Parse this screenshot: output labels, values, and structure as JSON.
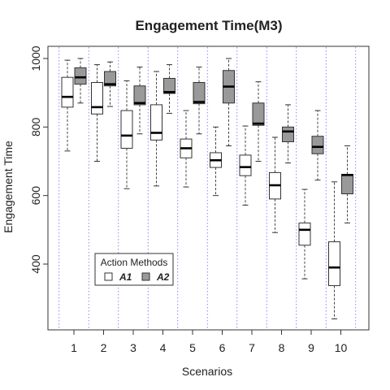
{
  "chart_data": {
    "type": "box",
    "title": "Engagement Time(M3)",
    "xlabel": "Scenarios",
    "ylabel": "Engagement Time",
    "categories": [
      "1",
      "2",
      "3",
      "4",
      "5",
      "6",
      "7",
      "8",
      "9",
      "10"
    ],
    "ylim": [
      200,
      1050
    ],
    "yticks": [
      400,
      600,
      800,
      1000
    ],
    "grid": "vertical dotted separators between scenarios",
    "legend": {
      "title": "Action Methods",
      "position": "bottom-left",
      "entries": [
        {
          "label": "A1",
          "color": "#ffffff"
        },
        {
          "label": "A2",
          "color": "#999999"
        }
      ]
    },
    "series": [
      {
        "name": "A1",
        "color": "#ffffff",
        "boxes": [
          {
            "min": 730,
            "q1": 858,
            "median": 888,
            "q3": 945,
            "max": 995
          },
          {
            "min": 700,
            "q1": 838,
            "median": 858,
            "q3": 930,
            "max": 982
          },
          {
            "min": 620,
            "q1": 738,
            "median": 775,
            "q3": 848,
            "max": 935
          },
          {
            "min": 628,
            "q1": 762,
            "median": 783,
            "q3": 865,
            "max": 962
          },
          {
            "min": 625,
            "q1": 710,
            "median": 738,
            "q3": 765,
            "max": 848
          },
          {
            "min": 600,
            "q1": 682,
            "median": 703,
            "q3": 725,
            "max": 800
          },
          {
            "min": 572,
            "q1": 658,
            "median": 683,
            "q3": 718,
            "max": 803
          },
          {
            "min": 492,
            "q1": 590,
            "median": 630,
            "q3": 667,
            "max": 770
          },
          {
            "min": 357,
            "q1": 455,
            "median": 500,
            "q3": 520,
            "max": 618
          },
          {
            "min": 240,
            "q1": 337,
            "median": 390,
            "q3": 465,
            "max": 640
          }
        ]
      },
      {
        "name": "A2",
        "color": "#999999",
        "boxes": [
          {
            "min": 870,
            "q1": 925,
            "median": 945,
            "q3": 973,
            "max": 1000
          },
          {
            "min": 860,
            "q1": 920,
            "median": 925,
            "q3": 962,
            "max": 990
          },
          {
            "min": 780,
            "q1": 865,
            "median": 870,
            "q3": 920,
            "max": 975
          },
          {
            "min": 840,
            "q1": 898,
            "median": 902,
            "q3": 942,
            "max": 982
          },
          {
            "min": 780,
            "q1": 868,
            "median": 873,
            "q3": 930,
            "max": 975
          },
          {
            "min": 745,
            "q1": 870,
            "median": 918,
            "q3": 965,
            "max": 1000
          },
          {
            "min": 700,
            "q1": 805,
            "median": 810,
            "q3": 870,
            "max": 932
          },
          {
            "min": 695,
            "q1": 757,
            "median": 787,
            "q3": 800,
            "max": 865
          },
          {
            "min": 645,
            "q1": 722,
            "median": 742,
            "q3": 773,
            "max": 848
          },
          {
            "min": 520,
            "q1": 605,
            "median": 660,
            "q3": 662,
            "max": 745
          }
        ]
      }
    ]
  }
}
